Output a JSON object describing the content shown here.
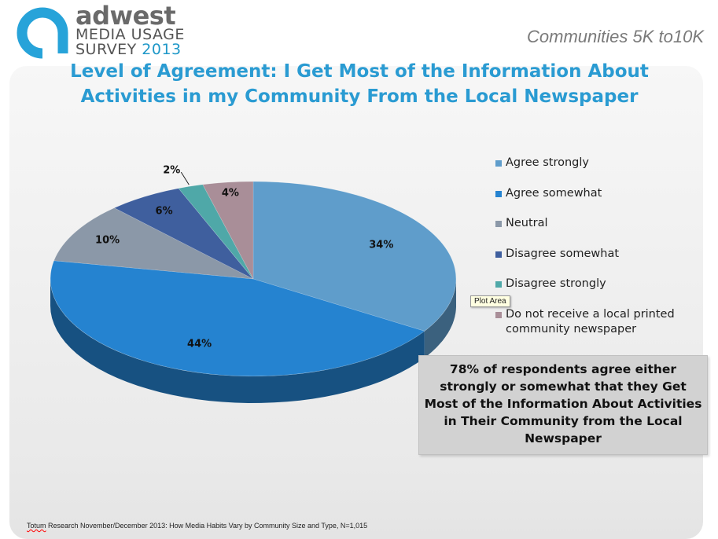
{
  "header": {
    "brand": "adwest",
    "brand_line1": "MEDIA USAGE",
    "brand_line2": "SURVEY",
    "brand_year": "2013",
    "subtitle": "Communities 5K to10K"
  },
  "colors": {
    "accent": "#2a9bd2",
    "logo_ring": "#27a3d9"
  },
  "title_lines": [
    "Level of Agreement: I Get Most of the Information About",
    "Activities in my Community From the Local Newspaper"
  ],
  "chart_data": {
    "type": "pie",
    "style": "3d",
    "title": "Level of Agreement: I Get Most of the Information About Activities in my Community From the Local Newspaper",
    "legend_position": "right",
    "slices": [
      {
        "label": "Agree strongly",
        "value": 34,
        "value_label": "34%",
        "color": "#5f9dcb"
      },
      {
        "label": "Agree somewhat",
        "value": 44,
        "value_label": "44%",
        "color": "#2583d0"
      },
      {
        "label": "Neutral",
        "value": 10,
        "value_label": "10%",
        "color": "#8b98a8"
      },
      {
        "label": "Disagree somewhat",
        "value": 6,
        "value_label": "6%",
        "color": "#3f5f9e"
      },
      {
        "label": "Disagree strongly",
        "value": 2,
        "value_label": "2%",
        "color": "#4fa8a8"
      },
      {
        "label": "Do not receive a local printed community newspaper",
        "value": 4,
        "value_label": "4%",
        "color": "#a98e98"
      }
    ]
  },
  "legend_lines": [
    [
      "Agree strongly"
    ],
    [
      "Agree somewhat"
    ],
    [
      "Neutral"
    ],
    [
      "Disagree somewhat"
    ],
    [
      "Disagree strongly"
    ],
    [
      "Do not receive a local printed",
      "community newspaper"
    ]
  ],
  "tooltip": "Plot Area",
  "callout_lines": [
    "78% of respondents agree either",
    "strongly or somewhat that they Get",
    "Most of the Information About Activities",
    "in Their Community from the Local",
    "Newspaper"
  ],
  "footer": {
    "source_prefix": "Totum",
    "source_rest": " Research November/December 2013: How Media Habits Vary by Community  Size and Type, N=1,015"
  }
}
